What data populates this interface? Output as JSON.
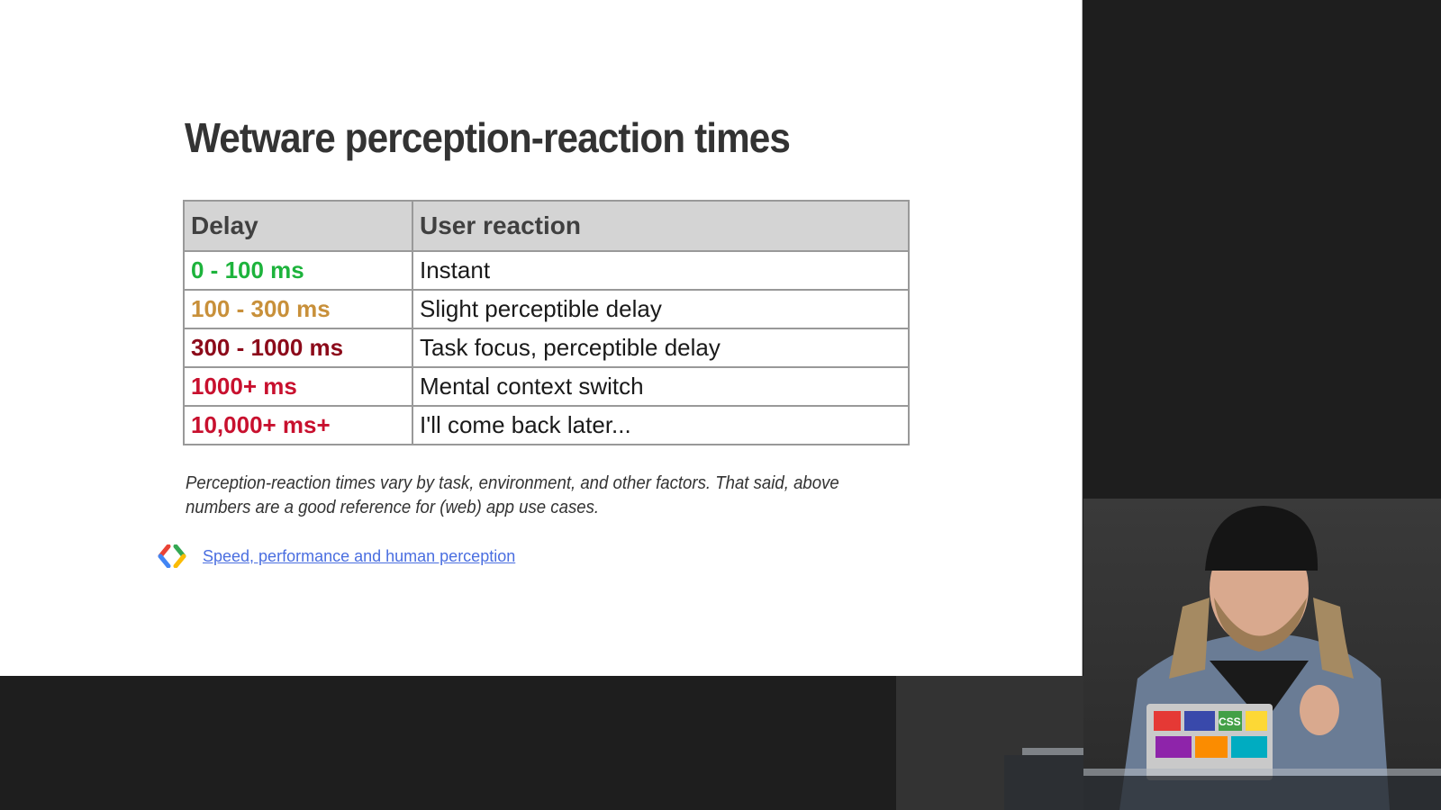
{
  "slide": {
    "title": "Wetware perception-reaction times",
    "table": {
      "headers": [
        "Delay",
        "User reaction"
      ],
      "rows": [
        {
          "delay": "0 - 100 ms",
          "reaction": "Instant",
          "color": "#1db33c"
        },
        {
          "delay": "100 - 300 ms",
          "reaction": "Slight perceptible delay",
          "color": "#c8903a"
        },
        {
          "delay": "300 - 1000 ms",
          "reaction": "Task focus, perceptible delay",
          "color": "#8c0a1a"
        },
        {
          "delay": "1000+ ms",
          "reaction": "Mental context switch",
          "color": "#c8102e"
        },
        {
          "delay": "10,000+ ms+",
          "reaction": "I'll come back later...",
          "color": "#c8102e"
        }
      ]
    },
    "caption": "Perception-reaction times vary by task, environment, and other factors. That said, above numbers are a good reference for (web) app use cases.",
    "source_link": {
      "label": "Speed, performance and human perception",
      "icon": "google-developers-logo-icon"
    }
  },
  "video": {
    "content": "speaker-camera-feed",
    "laptop_sticker": "CSS"
  }
}
